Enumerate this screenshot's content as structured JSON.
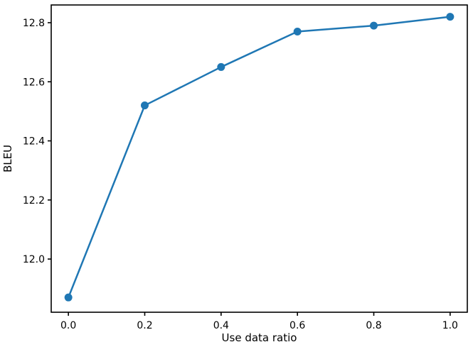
{
  "chart_data": {
    "type": "line",
    "title": "",
    "xlabel": "Use data ratio",
    "ylabel": "BLEU",
    "x": [
      0.0,
      0.2,
      0.4,
      0.6,
      0.8,
      1.0
    ],
    "series": [
      {
        "name": "BLEU",
        "values": [
          11.87,
          12.52,
          12.65,
          12.77,
          12.79,
          12.82
        ],
        "color": "#1f77b4",
        "marker": "circle",
        "marker_size": 5.5,
        "line_width": 2.5
      }
    ],
    "xticks": [
      0.0,
      0.2,
      0.4,
      0.6,
      0.8,
      1.0
    ],
    "xtick_labels": [
      "0.0",
      "0.2",
      "0.4",
      "0.6",
      "0.8",
      "1.0"
    ],
    "yticks": [
      12.0,
      12.2,
      12.4,
      12.6,
      12.8
    ],
    "ytick_labels": [
      "12.0",
      "12.2",
      "12.4",
      "12.6",
      "12.8"
    ],
    "xlim": [
      -0.045,
      1.045
    ],
    "ylim": [
      11.82,
      12.86
    ],
    "grid": false,
    "legend": "none",
    "background": "#ffffff",
    "spine_color": "#000000"
  }
}
